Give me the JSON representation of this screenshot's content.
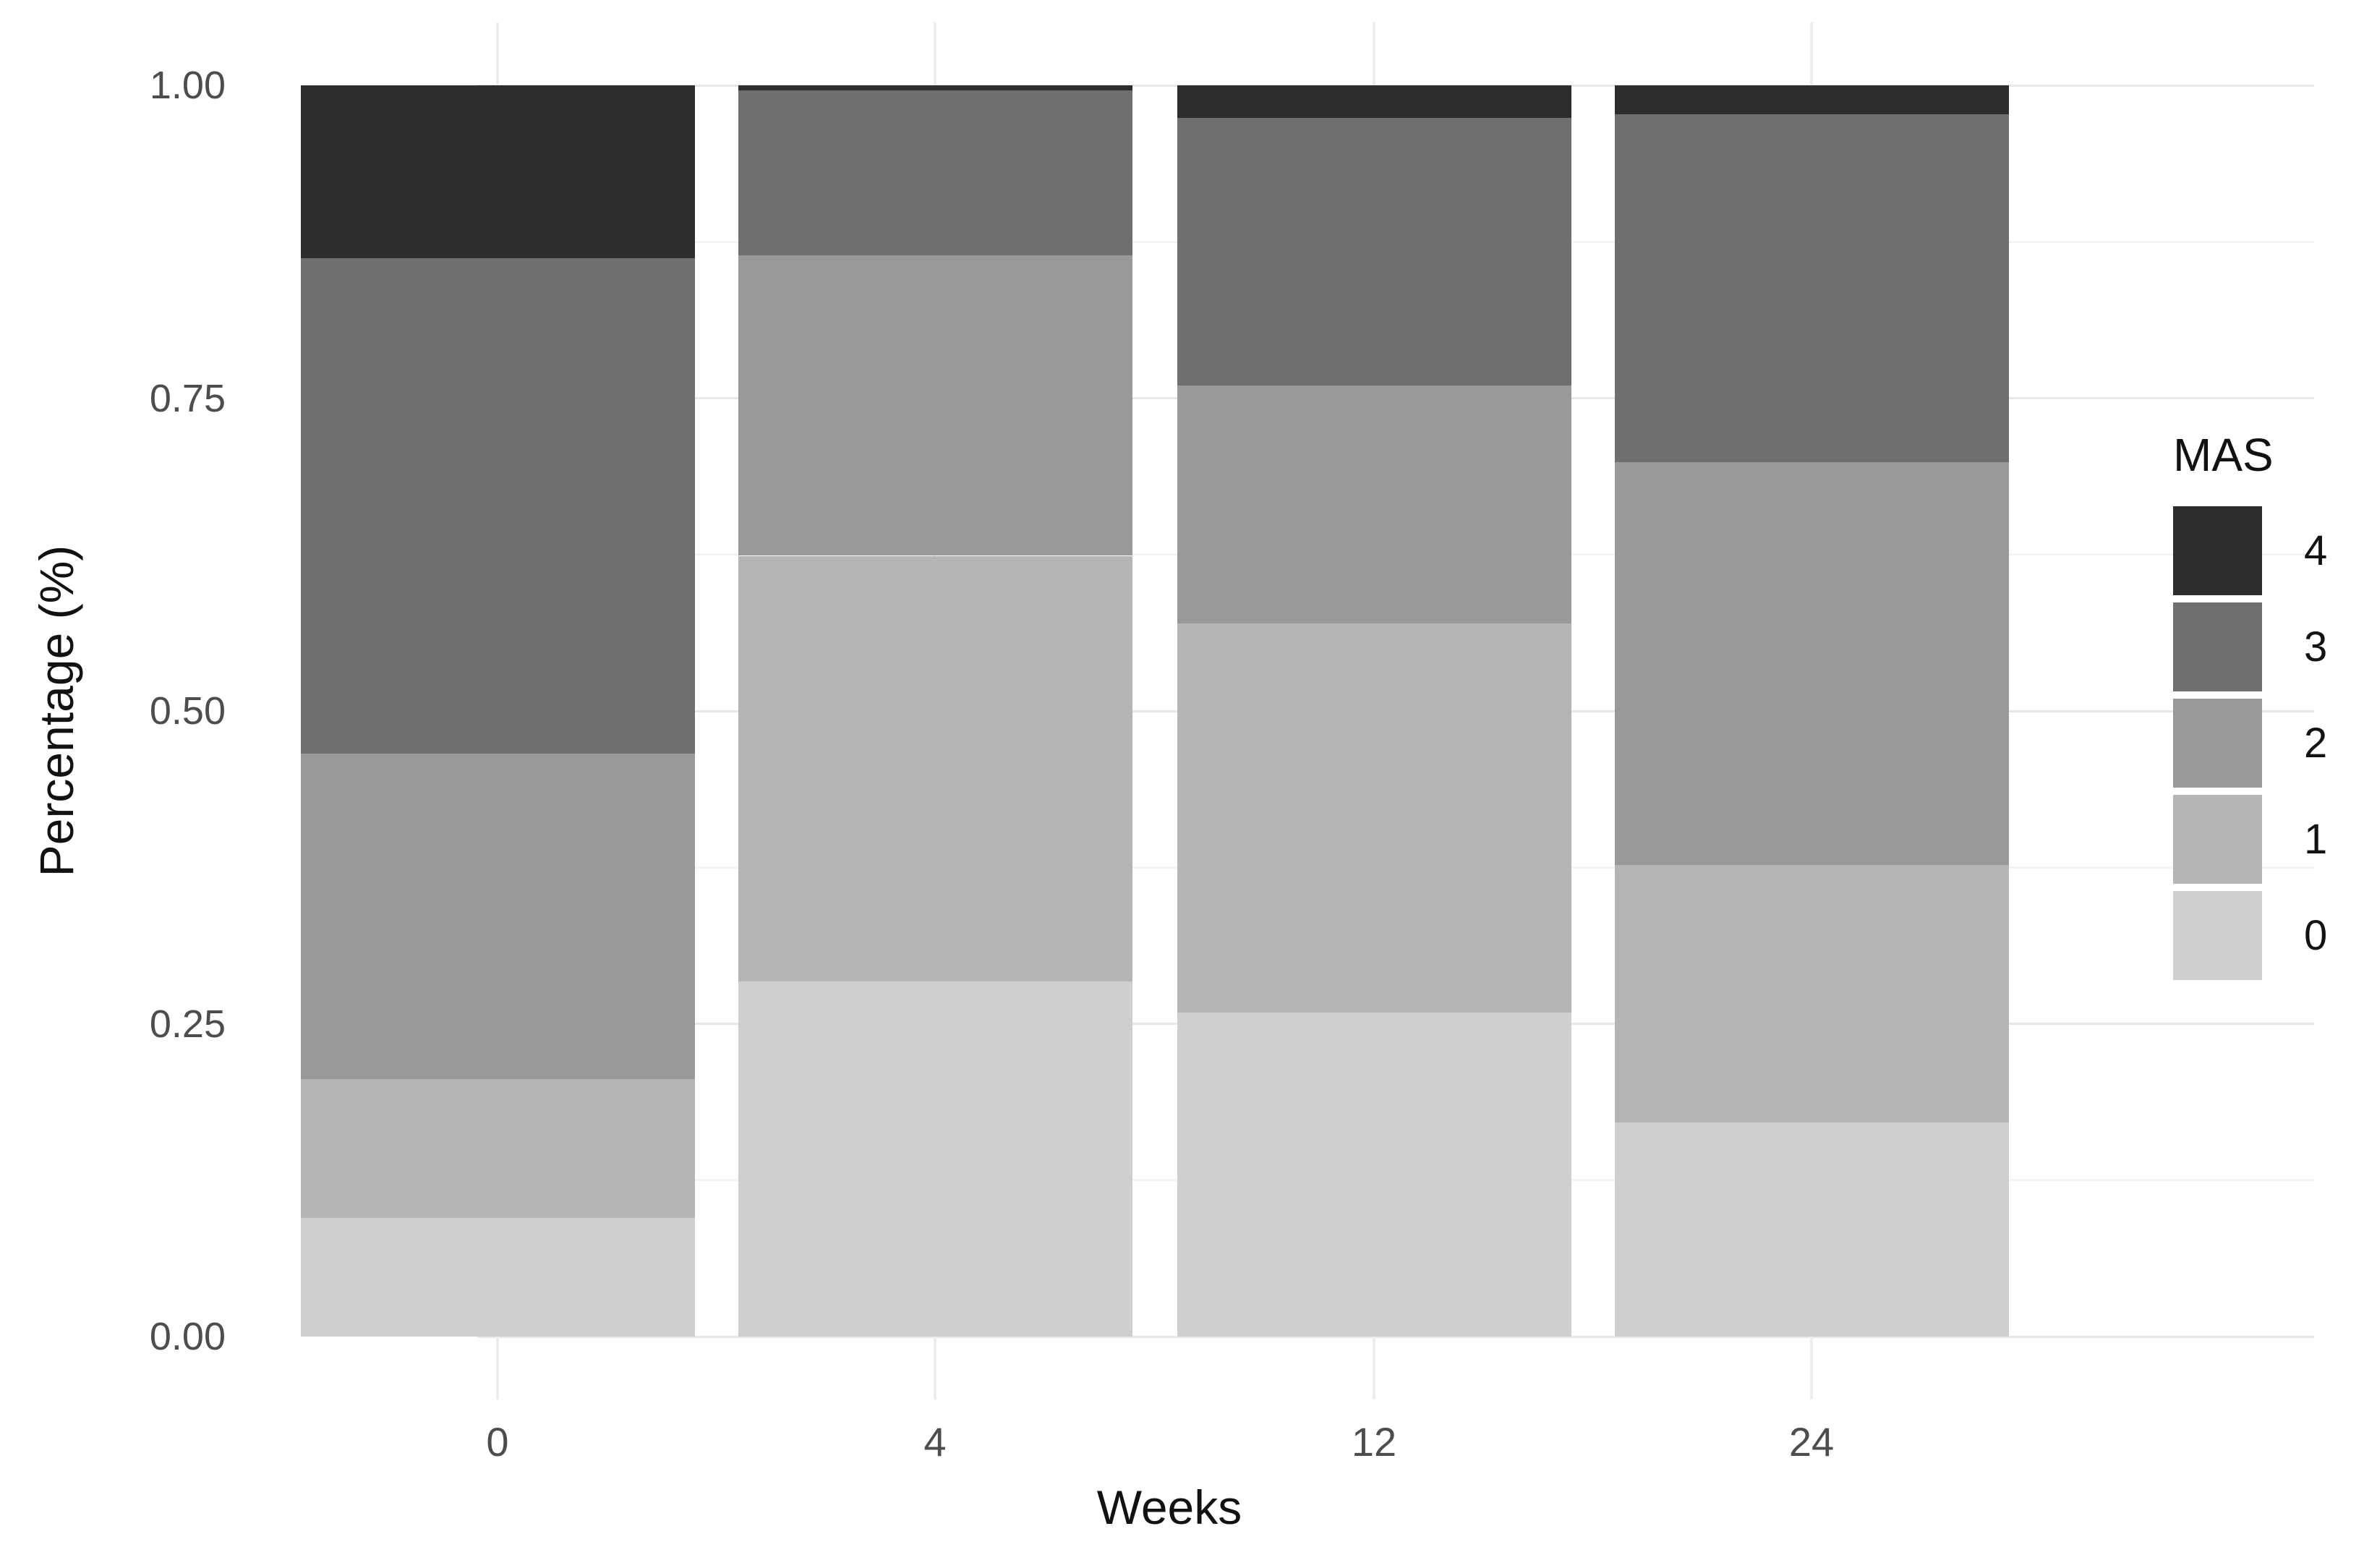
{
  "chart_data": {
    "type": "bar",
    "stacked": true,
    "normalized": true,
    "title": "",
    "xlabel": "Weeks",
    "ylabel": "Percentage (%)",
    "categories": [
      "0",
      "4",
      "12",
      "24"
    ],
    "series": [
      {
        "name": "0",
        "color": "#cfcfcf",
        "values": [
          0.095,
          0.284,
          0.259,
          0.171
        ]
      },
      {
        "name": "1",
        "color": "#b5b5b5",
        "values": [
          0.111,
          0.34,
          0.311,
          0.206
        ]
      },
      {
        "name": "2",
        "color": "#999999",
        "values": [
          0.26,
          0.24,
          0.19,
          0.322
        ]
      },
      {
        "name": "3",
        "color": "#6f6f6f",
        "values": [
          0.396,
          0.132,
          0.214,
          0.278
        ]
      },
      {
        "name": "4",
        "color": "#2d2d2d",
        "values": [
          0.138,
          0.004,
          0.026,
          0.023
        ]
      }
    ],
    "ylim": [
      0,
      1
    ],
    "y_ticks": [
      {
        "label": "0.00",
        "value": 0.0
      },
      {
        "label": "0.25",
        "value": 0.25
      },
      {
        "label": "0.50",
        "value": 0.5
      },
      {
        "label": "0.75",
        "value": 0.75
      },
      {
        "label": "1.00",
        "value": 1.0
      }
    ],
    "y_minor_ticks": [
      0.125,
      0.375,
      0.625,
      0.875
    ],
    "grid": true,
    "legend": {
      "title": "MAS",
      "position": "right",
      "entries": [
        "4",
        "3",
        "2",
        "1",
        "0"
      ]
    },
    "style": {
      "background": "#ffffff",
      "grid_major": "#e7e7e7",
      "grid_minor": "#f3f3f3",
      "grid_vertical": "#ededed",
      "tick_text": "#4d4d4d",
      "title_text": "#121212"
    }
  }
}
